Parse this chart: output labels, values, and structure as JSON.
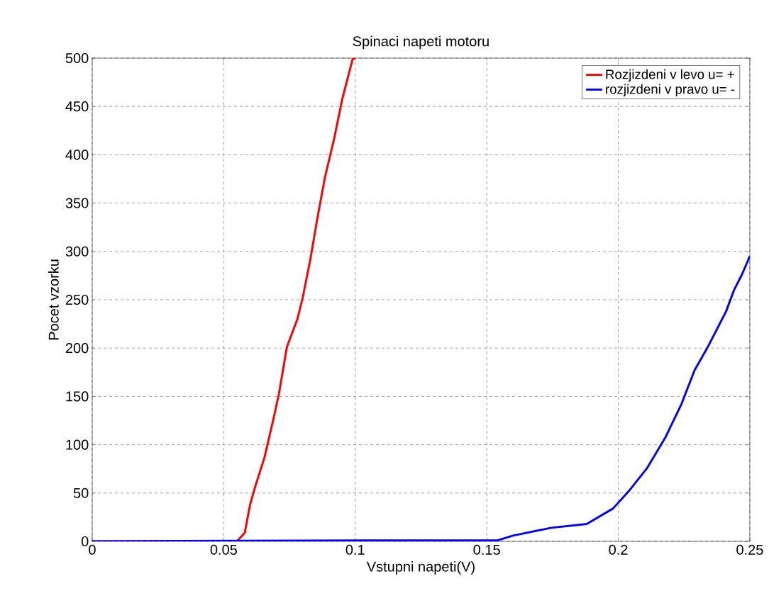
{
  "chart_data": {
    "type": "line",
    "title": "Spinaci napeti motoru",
    "xlabel": "Vstupni napeti(V)",
    "ylabel": "Pocet vzorku",
    "xlim": [
      0,
      0.25
    ],
    "ylim": [
      0,
      500
    ],
    "xticks": [
      0,
      0.05,
      0.1,
      0.15,
      0.2,
      0.25
    ],
    "yticks": [
      0,
      50,
      100,
      150,
      200,
      250,
      300,
      350,
      400,
      450,
      500
    ],
    "grid": true,
    "legend": "top right",
    "line_style": "solid",
    "series": [
      {
        "name": "Rozjizdeni v levo u= +",
        "color": "#ff0000",
        "x": [
          0,
          0.055,
          0.058,
          0.06,
          0.062,
          0.0655,
          0.069,
          0.071,
          0.074,
          0.078,
          0.08,
          0.083,
          0.0855,
          0.0885,
          0.092,
          0.095,
          0.099,
          0.1
        ],
        "values": [
          0,
          0,
          9,
          38,
          57,
          87,
          128,
          153,
          201,
          230,
          252,
          293,
          333,
          377,
          417,
          457,
          499,
          500
        ]
      },
      {
        "name": "rozjizdeni v pravo u= -",
        "color": "#0000ff",
        "x": [
          0,
          0.107,
          0.154,
          0.16,
          0.1745,
          0.188,
          0.198,
          0.204,
          0.211,
          0.218,
          0.224,
          0.229,
          0.234,
          0.241,
          0.244,
          0.247,
          0.25
        ],
        "values": [
          0,
          1,
          1,
          6,
          14,
          18,
          34,
          52,
          76,
          108,
          142,
          177,
          201,
          238,
          260,
          276,
          295
        ]
      }
    ]
  }
}
